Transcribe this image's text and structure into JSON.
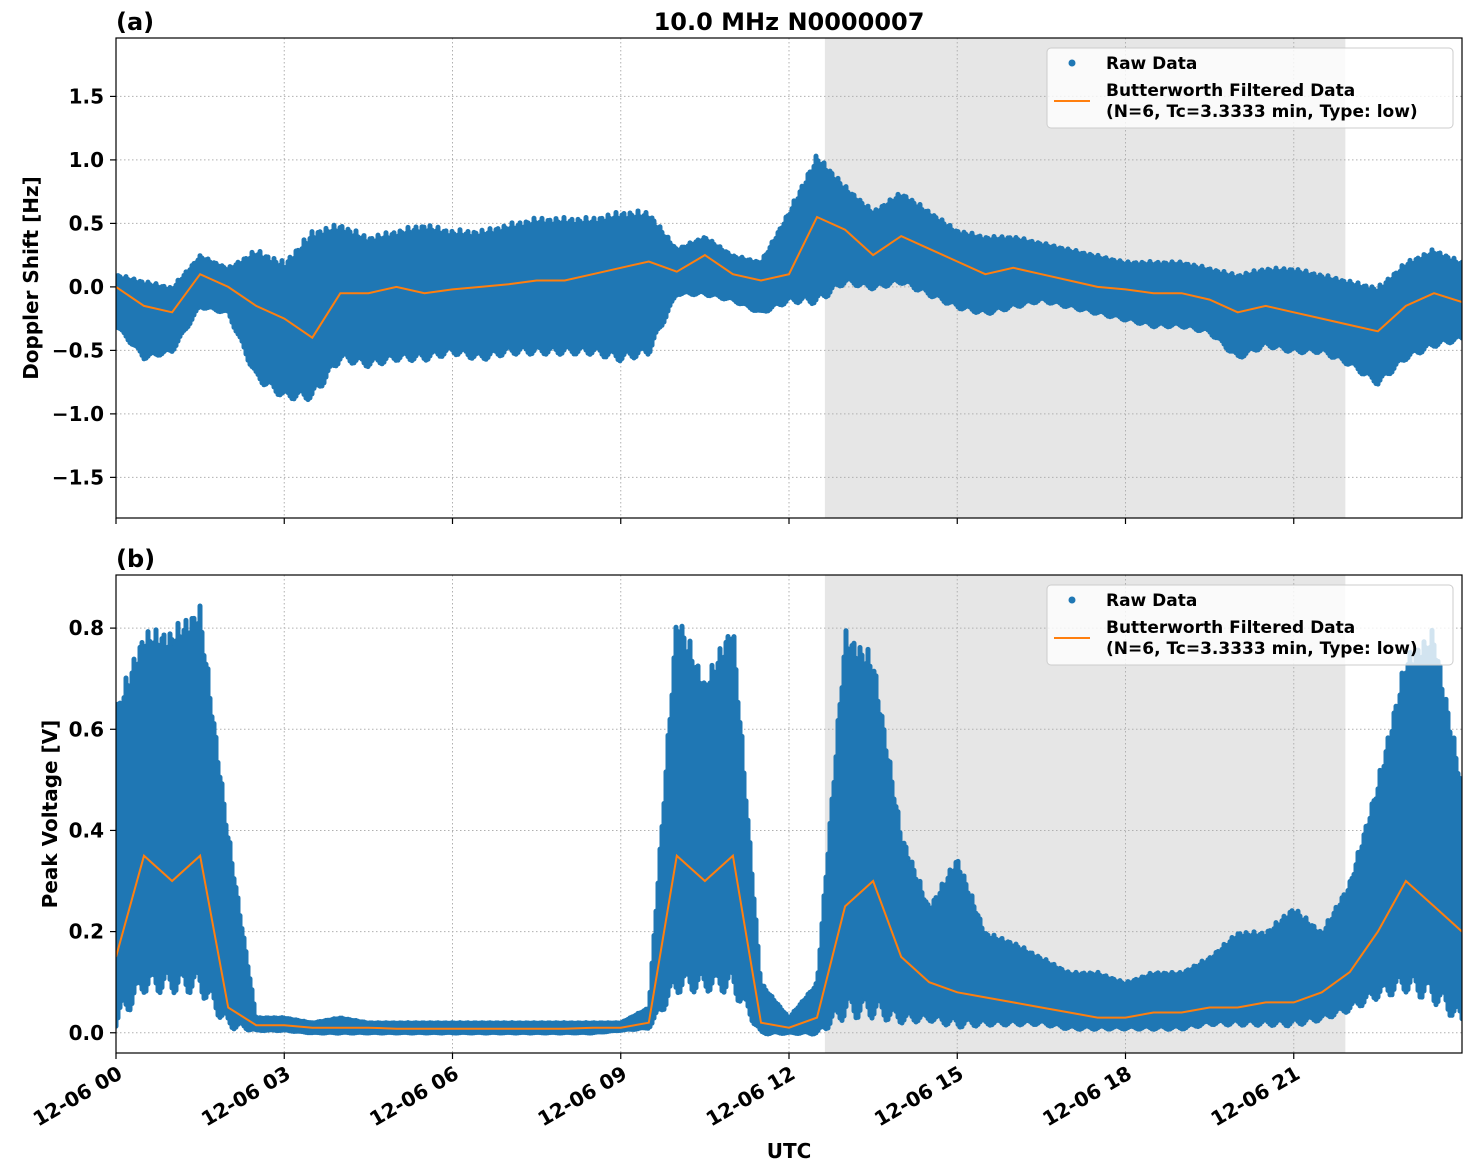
{
  "chart_data": [
    {
      "type": "scatter+line",
      "panel_label": "(a)",
      "title": "10.0 MHz N0000007",
      "xlabel": "",
      "ylabel": "Doppler Shift [Hz]",
      "ylim": [
        -1.82,
        1.96
      ],
      "yticks": [
        -1.5,
        -1.0,
        -0.5,
        0.0,
        0.5,
        1.0,
        1.5
      ],
      "ytick_labels": [
        "−1.5",
        "−1.0",
        "−0.5",
        "0.0",
        "0.5",
        "1.0",
        "1.5"
      ],
      "grid": true,
      "legend_position": "top-right",
      "legend": [
        "Raw Data",
        "Butterworth Filtered Data",
        "(N=6, Tc=3.3333 min, Type: low)"
      ],
      "shaded_utc_hours": [
        12.64,
        21.92
      ],
      "utc_hours": [
        0,
        0.5,
        1,
        1.5,
        2,
        2.5,
        3,
        3.5,
        4,
        4.5,
        5,
        5.5,
        6,
        6.5,
        7,
        7.5,
        8,
        8.5,
        9,
        9.5,
        10,
        10.5,
        11,
        11.5,
        12,
        12.5,
        13,
        13.5,
        14,
        14.5,
        15,
        15.5,
        16,
        16.5,
        17,
        17.5,
        18,
        18.5,
        19,
        19.5,
        20,
        20.5,
        21,
        21.5,
        22,
        22.5,
        23,
        23.5,
        24
      ],
      "filtered": [
        0.0,
        -0.15,
        -0.2,
        0.1,
        0.0,
        -0.15,
        -0.25,
        -0.4,
        -0.05,
        -0.05,
        0.0,
        -0.05,
        -0.02,
        0.0,
        0.02,
        0.05,
        0.05,
        0.1,
        0.15,
        0.2,
        0.12,
        0.25,
        0.1,
        0.05,
        0.1,
        0.55,
        0.45,
        0.25,
        0.4,
        0.3,
        0.2,
        0.1,
        0.15,
        0.1,
        0.05,
        0.0,
        -0.02,
        -0.05,
        -0.05,
        -0.1,
        -0.2,
        -0.15,
        -0.2,
        -0.25,
        -0.3,
        -0.35,
        -0.15,
        -0.05,
        -0.12
      ],
      "raw_low": [
        -0.3,
        -0.55,
        -0.5,
        -0.15,
        -0.2,
        -0.7,
        -0.85,
        -0.85,
        -0.55,
        -0.6,
        -0.55,
        -0.55,
        -0.5,
        -0.55,
        -0.5,
        -0.5,
        -0.5,
        -0.5,
        -0.55,
        -0.5,
        -0.05,
        -0.05,
        -0.1,
        -0.2,
        -0.1,
        -0.1,
        0.05,
        0.0,
        0.05,
        -0.05,
        -0.15,
        -0.2,
        -0.15,
        -0.1,
        -0.15,
        -0.2,
        -0.25,
        -0.3,
        -0.3,
        -0.35,
        -0.55,
        -0.45,
        -0.5,
        -0.5,
        -0.6,
        -0.75,
        -0.55,
        -0.45,
        -0.4
      ],
      "raw_high": [
        0.1,
        0.05,
        0.0,
        0.25,
        0.15,
        0.3,
        0.2,
        0.45,
        0.5,
        0.4,
        0.45,
        0.5,
        0.45,
        0.45,
        0.5,
        0.55,
        0.55,
        0.55,
        0.6,
        0.6,
        0.3,
        0.4,
        0.25,
        0.2,
        0.6,
        1.05,
        0.8,
        0.6,
        0.75,
        0.6,
        0.45,
        0.4,
        0.4,
        0.35,
        0.3,
        0.25,
        0.2,
        0.2,
        0.2,
        0.15,
        0.1,
        0.15,
        0.15,
        0.1,
        0.05,
        0.0,
        0.2,
        0.3,
        0.2
      ]
    },
    {
      "type": "scatter+line",
      "panel_label": "(b)",
      "title": "",
      "xlabel": "UTC",
      "ylabel": "Peak Voltage [V]",
      "ylim": [
        -0.04,
        0.905
      ],
      "yticks": [
        0.0,
        0.2,
        0.4,
        0.6,
        0.8
      ],
      "ytick_labels": [
        "0.0",
        "0.2",
        "0.4",
        "0.6",
        "0.8"
      ],
      "xticks_utc_hours": [
        0,
        3,
        6,
        9,
        12,
        15,
        18,
        21
      ],
      "xtick_labels": [
        "12-06 00",
        "12-06 03",
        "12-06 06",
        "12-06 09",
        "12-06 12",
        "12-06 15",
        "12-06 18",
        "12-06 21"
      ],
      "grid": true,
      "legend_position": "top-right",
      "legend": [
        "Raw Data",
        "Butterworth Filtered Data",
        "(N=6, Tc=3.3333 min, Type: low)"
      ],
      "shaded_utc_hours": [
        12.64,
        21.92
      ],
      "utc_hours": [
        0,
        0.5,
        1,
        1.5,
        2,
        2.5,
        3,
        3.5,
        4,
        4.5,
        5,
        5.5,
        6,
        6.5,
        7,
        7.5,
        8,
        8.5,
        9,
        9.5,
        10,
        10.5,
        11,
        11.5,
        12,
        12.5,
        13,
        13.5,
        14,
        14.5,
        15,
        15.5,
        16,
        16.5,
        17,
        17.5,
        18,
        18.5,
        19,
        19.5,
        20,
        20.5,
        21,
        21.5,
        22,
        22.5,
        23,
        23.5,
        24
      ],
      "filtered": [
        0.15,
        0.35,
        0.3,
        0.35,
        0.05,
        0.015,
        0.015,
        0.01,
        0.01,
        0.01,
        0.008,
        0.008,
        0.008,
        0.008,
        0.008,
        0.008,
        0.008,
        0.01,
        0.01,
        0.02,
        0.35,
        0.3,
        0.35,
        0.02,
        0.01,
        0.03,
        0.25,
        0.3,
        0.15,
        0.1,
        0.08,
        0.07,
        0.06,
        0.05,
        0.04,
        0.03,
        0.03,
        0.04,
        0.04,
        0.05,
        0.05,
        0.06,
        0.06,
        0.08,
        0.12,
        0.2,
        0.3,
        0.25,
        0.2
      ],
      "raw_low": [
        0.03,
        0.1,
        0.1,
        0.1,
        0.02,
        0.005,
        0.005,
        0.0,
        0.0,
        0.0,
        0.0,
        0.0,
        0.0,
        0.0,
        0.0,
        0.0,
        0.0,
        0.0,
        0.005,
        0.01,
        0.1,
        0.1,
        0.1,
        0.0,
        0.0,
        0.0,
        0.05,
        0.05,
        0.03,
        0.03,
        0.02,
        0.02,
        0.02,
        0.02,
        0.01,
        0.01,
        0.01,
        0.01,
        0.01,
        0.02,
        0.02,
        0.02,
        0.02,
        0.03,
        0.05,
        0.08,
        0.1,
        0.08,
        0.03
      ],
      "raw_high": [
        0.65,
        0.8,
        0.8,
        0.85,
        0.4,
        0.03,
        0.03,
        0.02,
        0.03,
        0.02,
        0.02,
        0.02,
        0.02,
        0.02,
        0.02,
        0.02,
        0.02,
        0.02,
        0.02,
        0.05,
        0.84,
        0.7,
        0.82,
        0.1,
        0.03,
        0.1,
        0.8,
        0.75,
        0.4,
        0.25,
        0.35,
        0.2,
        0.18,
        0.15,
        0.12,
        0.12,
        0.1,
        0.12,
        0.12,
        0.15,
        0.2,
        0.2,
        0.25,
        0.2,
        0.3,
        0.5,
        0.75,
        0.8,
        0.5
      ]
    }
  ],
  "colors": {
    "raw": "#1f77b4",
    "filtered": "#ff7f0e",
    "shade": "#e6e6e6",
    "grid": "#b0b0b0"
  }
}
